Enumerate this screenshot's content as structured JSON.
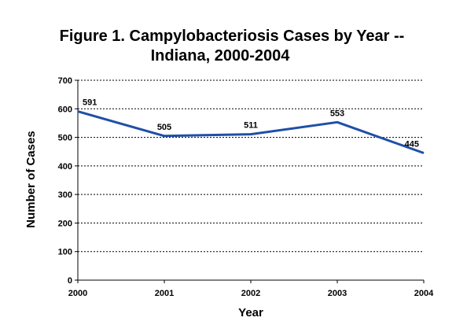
{
  "chart_data": {
    "type": "line",
    "title_line1": "Figure 1.  Campylobacteriosis Cases by Year --",
    "title_line2": "Indiana, 2000-2004",
    "xlabel": "Year",
    "ylabel": "Number of Cases",
    "x": [
      "2000",
      "2001",
      "2002",
      "2003",
      "2004"
    ],
    "series": [
      {
        "values": [
          591,
          505,
          511,
          553,
          445
        ]
      }
    ],
    "data_labels": [
      "591",
      "505",
      "511",
      "553",
      "445"
    ],
    "ylim": [
      0,
      700
    ],
    "yticks": [
      "0",
      "100",
      "200",
      "300",
      "400",
      "500",
      "600",
      "700"
    ],
    "grid": "horizontal dotted",
    "line_color": "#1f4fa8"
  }
}
